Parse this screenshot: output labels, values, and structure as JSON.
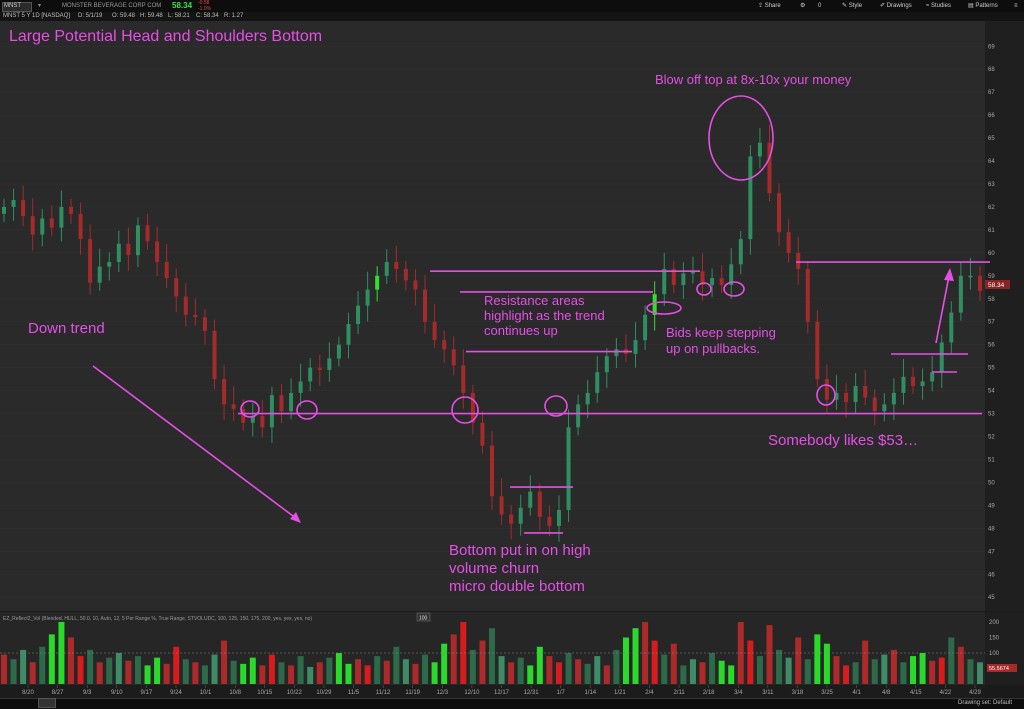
{
  "toolbar": {
    "symbol": "MNST",
    "company": "MONSTER BEVERAGE CORP COM",
    "last": "58.34",
    "change": "-0.58",
    "change_pct": "-1.0%",
    "buttons": [
      "Share",
      "Style",
      "Drawings",
      "Studies",
      "Patterns"
    ],
    "counter": "0"
  },
  "quote_line": {
    "title": "MNST 5 Y 1D [NASDAQ]",
    "date": "D: 5/1/19",
    "open": "O: 59.48",
    "high": "H: 59.48",
    "low": "L: 58.21",
    "close": "C: 58.34",
    "range": "R: 1.27"
  },
  "volume_study": {
    "label": "EZ_Reflect2_Vol (Blended, HULL, 50.0, 10, Auto, 12, 5 Per Range %, True Range, STVOLUDC, 100, 125, 150, 175, 200, yes, yes, yes, no)",
    "value": "55.5674",
    "value_box": "100",
    "axis": [
      "200",
      "150",
      "100",
      "50"
    ]
  },
  "bottom_bar": {
    "drawing_set": "Drawing set: Default"
  },
  "chart_data": {
    "type": "candlestick",
    "ylim": [
      44.4,
      70.1
    ],
    "yticks": [
      45,
      46,
      47,
      48,
      49,
      50,
      51,
      52,
      53,
      54,
      55,
      56,
      57,
      58,
      59,
      60,
      61,
      62,
      63,
      64,
      65,
      66,
      67,
      68,
      69
    ],
    "last_price_label": "58.34",
    "x_tick_labels": [
      "8/20",
      "8/27",
      "9/3",
      "9/10",
      "9/17",
      "9/24",
      "10/1",
      "10/8",
      "10/15",
      "10/22",
      "10/29",
      "11/5",
      "11/12",
      "11/19",
      "12/3",
      "12/10",
      "12/17",
      "12/31",
      "1/7",
      "1/14",
      "1/21",
      "2/4",
      "2/11",
      "2/18",
      "3/4",
      "3/11",
      "3/18",
      "3/25",
      "4/1",
      "4/8",
      "4/15",
      "4/22",
      "4/29"
    ],
    "price_series": [
      62.0,
      62.3,
      61.6,
      60.8,
      61.5,
      61.1,
      62.0,
      61.7,
      60.6,
      58.7,
      59.4,
      59.6,
      60.4,
      59.9,
      61.2,
      60.5,
      59.6,
      58.9,
      58.1,
      57.3,
      57.2,
      56.6,
      54.5,
      53.4,
      53.2,
      52.6,
      52.9,
      52.4,
      53.8,
      53.1,
      53.9,
      54.4,
      55.0,
      54.9,
      55.4,
      56.0,
      56.9,
      57.7,
      58.4,
      59.0,
      59.6,
      59.3,
      58.8,
      58.4,
      57.0,
      56.2,
      55.8,
      55.1,
      53.9,
      52.6,
      51.6,
      49.4,
      48.6,
      48.2,
      48.9,
      49.6,
      48.5,
      48.1,
      48.8,
      52.4,
      53.4,
      53.9,
      54.8,
      55.5,
      55.8,
      55.6,
      56.2,
      57.3,
      58.2,
      59.3,
      58.6,
      59.1,
      59.2,
      58.6,
      58.9,
      58.6,
      59.5,
      60.6,
      64.2,
      64.8,
      62.6,
      60.9,
      60.0,
      59.3,
      57.0,
      54.5,
      53.6,
      53.9,
      53.5,
      54.2,
      53.7,
      53.1,
      53.4,
      53.9,
      54.6,
      54.2,
      54.4,
      54.8,
      56.1,
      57.4,
      59.0,
      59.0,
      58.34
    ],
    "volume_series": [
      95,
      80,
      110,
      70,
      120,
      160,
      200,
      150,
      90,
      110,
      70,
      85,
      100,
      75,
      90,
      60,
      85,
      65,
      120,
      80,
      70,
      60,
      95,
      140,
      75,
      65,
      85,
      60,
      95,
      70,
      60,
      90,
      55,
      70,
      85,
      100,
      65,
      80,
      60,
      90,
      75,
      120,
      80,
      65,
      95,
      70,
      130,
      160,
      200,
      110,
      140,
      180,
      90,
      70,
      85,
      60,
      120,
      90,
      70,
      100,
      80,
      65,
      90,
      60,
      110,
      150,
      180,
      200,
      140,
      95,
      130,
      60,
      80,
      70,
      100,
      75,
      60,
      200,
      140,
      90,
      190,
      110,
      85,
      150,
      80,
      160,
      130,
      90,
      60,
      70,
      140,
      80,
      95,
      110,
      70,
      90,
      100,
      75,
      85,
      150,
      120,
      80,
      70
    ],
    "volume_colors": [
      "#ac2a2a",
      "#2c6a4a",
      "#3d8c66",
      "#ac2a2a",
      "#2c6a4a",
      "#2bd92b",
      "#2bd92b",
      "#ac2a2a",
      "#d61c1c",
      "#2c6a4a"
    ],
    "levels": {
      "support": 53.0,
      "resistance_top": 59.6,
      "resistance_1": 59.2,
      "resistance_2": 58.3,
      "resistance_3": 55.7,
      "bottom_range_high": 49.8,
      "bottom_range_low": 47.8
    },
    "annotations": {
      "title": "Large Potential Head and Shoulders Bottom",
      "downtrend": "Down trend",
      "blowoff": "Blow off top at 8x-10x your money",
      "resistance": [
        "Resistance areas",
        "highlight as the trend",
        "continues up"
      ],
      "bids": [
        "Bids keep stepping",
        "up on pullbacks."
      ],
      "support_note": "Somebody likes $53…",
      "bottom_note": [
        "Bottom put in on high",
        "volume churn",
        "micro double bottom"
      ]
    },
    "colors": {
      "up": "#2f8f61",
      "down": "#a52a2a",
      "highlight_up": "#2fe02f",
      "annotation": "#e64fe6"
    }
  }
}
